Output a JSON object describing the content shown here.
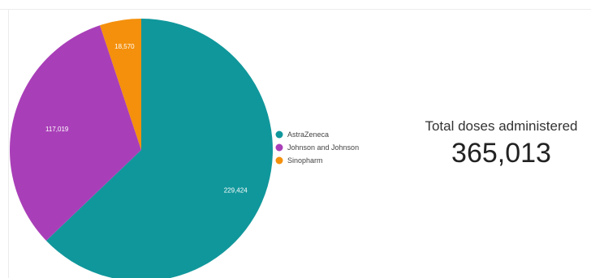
{
  "chart_data": {
    "type": "pie",
    "title": "",
    "slices": [
      {
        "label": "AstraZeneca",
        "value": 229424,
        "display": "229,424",
        "color": "#10979b"
      },
      {
        "label": "Johnson and Johnson",
        "value": 117019,
        "display": "117,019",
        "color": "#a93fb8"
      },
      {
        "label": "Sinopharm",
        "value": 18570,
        "display": "18,570",
        "color": "#f4900c"
      }
    ],
    "legend": {
      "placement": "right",
      "entries": [
        "AstraZeneca",
        "Johnson and Johnson",
        "Sinopharm"
      ]
    }
  },
  "scorecard": {
    "title": "Total doses administered",
    "value": "365,013"
  }
}
